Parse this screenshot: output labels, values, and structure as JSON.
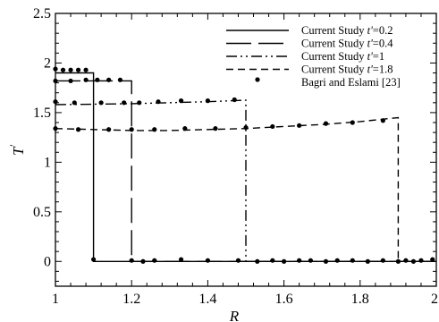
{
  "chart_data": {
    "type": "line",
    "title": "",
    "xlabel": "R",
    "ylabel": "T",
    "ylabel_prime": "'",
    "xlim": [
      1,
      2
    ],
    "ylim": [
      -0.25,
      2.5
    ],
    "xticks": [
      1,
      1.2,
      1.4,
      1.6,
      1.8,
      2
    ],
    "xtick_labels": [
      "1",
      "1.2",
      "1.4",
      "1.6",
      "1.8",
      "2"
    ],
    "yticks": [
      0,
      0.5,
      1,
      1.5,
      2,
      2.5
    ],
    "ytick_labels": [
      "0",
      "0.5",
      "1",
      "1.5",
      "2",
      "2.5"
    ],
    "grid": false,
    "legend_position": "top-right",
    "series": [
      {
        "name": "Current Study t'=0.2",
        "legend_prefix": "Current Study ",
        "legend_var": "t'",
        "legend_value": "=0.2",
        "style": "solid",
        "x": [
          1.0,
          1.1,
          1.1,
          2.0
        ],
        "y": [
          1.9,
          1.9,
          0.0,
          0.0
        ]
      },
      {
        "name": "Current Study t'=0.4",
        "legend_prefix": "Current Study ",
        "legend_var": "t'",
        "legend_value": "=0.4",
        "style": "longdash",
        "x": [
          1.0,
          1.2,
          1.2,
          2.0
        ],
        "y": [
          1.82,
          1.82,
          0.0,
          0.0
        ]
      },
      {
        "name": "Current Study t'=1",
        "legend_prefix": "Current Study ",
        "legend_var": "t'",
        "legend_value": "=1",
        "style": "dashdotdot",
        "x": [
          1.0,
          1.1,
          1.2,
          1.3,
          1.4,
          1.5,
          1.5,
          2.0
        ],
        "y": [
          1.58,
          1.585,
          1.59,
          1.6,
          1.61,
          1.625,
          0.0,
          0.0
        ]
      },
      {
        "name": "Current Study t'=1.8",
        "legend_prefix": "Current Study ",
        "legend_var": "t'",
        "legend_value": "=1.8",
        "style": "dash",
        "x": [
          1.0,
          1.1,
          1.2,
          1.3,
          1.4,
          1.5,
          1.6,
          1.7,
          1.8,
          1.9,
          1.9,
          2.0
        ],
        "y": [
          1.34,
          1.33,
          1.32,
          1.32,
          1.33,
          1.34,
          1.36,
          1.38,
          1.41,
          1.45,
          0.0,
          0.0
        ]
      }
    ],
    "points_series": {
      "name": "Bagri and Eslami [23]",
      "points": [
        [
          1.0,
          1.94
        ],
        [
          1.02,
          1.93
        ],
        [
          1.04,
          1.93
        ],
        [
          1.06,
          1.93
        ],
        [
          1.08,
          1.93
        ],
        [
          1.0,
          1.82
        ],
        [
          1.04,
          1.82
        ],
        [
          1.08,
          1.83
        ],
        [
          1.11,
          1.83
        ],
        [
          1.14,
          1.83
        ],
        [
          1.17,
          1.83
        ],
        [
          1.0,
          1.61
        ],
        [
          1.05,
          1.6
        ],
        [
          1.12,
          1.6
        ],
        [
          1.18,
          1.6
        ],
        [
          1.22,
          1.6
        ],
        [
          1.27,
          1.61
        ],
        [
          1.33,
          1.62
        ],
        [
          1.4,
          1.62
        ],
        [
          1.47,
          1.63
        ],
        [
          1.0,
          1.34
        ],
        [
          1.06,
          1.33
        ],
        [
          1.14,
          1.33
        ],
        [
          1.2,
          1.33
        ],
        [
          1.26,
          1.33
        ],
        [
          1.34,
          1.34
        ],
        [
          1.42,
          1.34
        ],
        [
          1.5,
          1.35
        ],
        [
          1.57,
          1.36
        ],
        [
          1.64,
          1.37
        ],
        [
          1.71,
          1.39
        ],
        [
          1.78,
          1.4
        ],
        [
          1.86,
          1.42
        ],
        [
          1.1,
          0.02
        ],
        [
          1.2,
          0.01
        ],
        [
          1.23,
          0.0
        ],
        [
          1.26,
          0.01
        ],
        [
          1.33,
          0.02
        ],
        [
          1.4,
          0.01
        ],
        [
          1.48,
          0.01
        ],
        [
          1.53,
          0.0
        ],
        [
          1.57,
          0.01
        ],
        [
          1.6,
          0.0
        ],
        [
          1.64,
          0.01
        ],
        [
          1.67,
          0.01
        ],
        [
          1.71,
          0.0
        ],
        [
          1.74,
          0.01
        ],
        [
          1.78,
          0.01
        ],
        [
          1.82,
          0.0
        ],
        [
          1.86,
          0.01
        ],
        [
          1.9,
          0.0
        ],
        [
          1.92,
          0.01
        ],
        [
          1.94,
          0.0
        ],
        [
          1.96,
          0.01
        ],
        [
          1.99,
          0.02
        ]
      ]
    }
  }
}
